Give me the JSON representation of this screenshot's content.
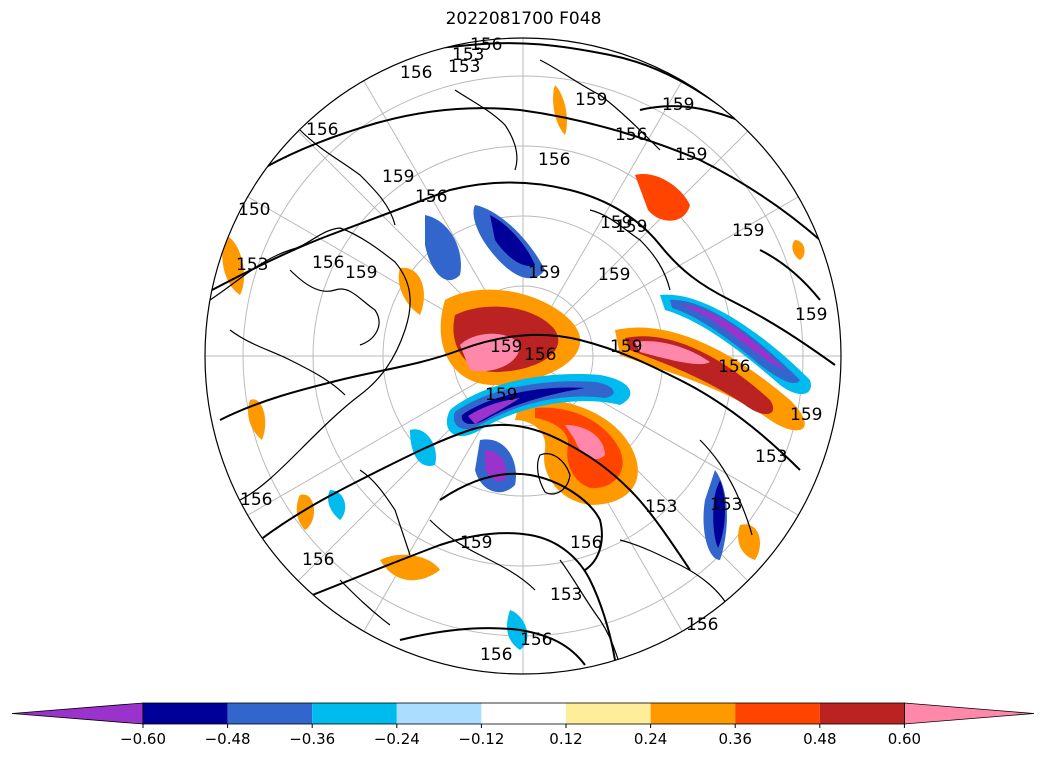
{
  "title": "2022081700 F048",
  "colorbar": {
    "extend": "both",
    "levels": [
      "−0.60",
      "−0.48",
      "−0.36",
      "−0.24",
      "−0.12",
      "0.12",
      "0.24",
      "0.36",
      "0.48",
      "0.60"
    ],
    "colors": [
      "#9933cc",
      "#000099",
      "#3366cc",
      "#00bbee",
      "#aaddff",
      "#ffffff",
      "#ffee99",
      "#ff9900",
      "#ff4400",
      "#bb2222",
      "#ff88aa"
    ]
  },
  "contour_labels": [
    "156",
    "153",
    "156",
    "153",
    "159",
    "159",
    "156",
    "156",
    "159",
    "150",
    "156",
    "159",
    "156",
    "159",
    "159",
    "159",
    "153",
    "156",
    "159",
    "159",
    "159",
    "156",
    "159",
    "159",
    "159",
    "159",
    "156",
    "153",
    "156",
    "153",
    "159",
    "156",
    "156",
    "156",
    "153",
    "153",
    "156",
    "159",
    "156"
  ],
  "map": {
    "projection": "north polar stereographic",
    "line_color": "#000000",
    "grid_color": "#bbbbbb"
  }
}
